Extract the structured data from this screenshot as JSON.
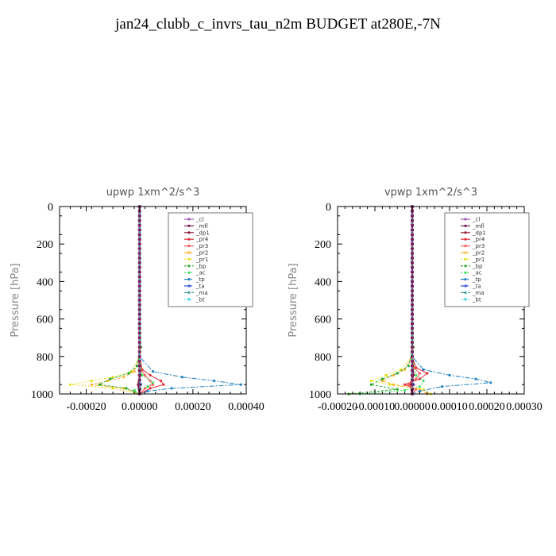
{
  "title": "jan24_clubb_c_invrs_tau_n2m  BUDGET at280E,-7N",
  "colors": {
    "_cl": "#9b59b6",
    "_mfl": "#7a1f5c",
    "_dp1": "#8b1a3a",
    "_pr4": "#e0303a",
    "_pr3": "#ff5a5a",
    "_pr2": "#ffb030",
    "_pr1": "#e8e020",
    "_bp": "#2aaa2a",
    "_ac": "#40e060",
    "_tp": "#2080c0",
    "_ta": "#3050d0",
    "_ma": "#40a0a0",
    "_bt": "#20d0e0"
  },
  "chart_data": [
    {
      "type": "line",
      "title": "upwp   1xm^2/s^3",
      "ylabel": "Pressure [hPa]",
      "xlabel": "",
      "xlim": [
        -0.0003,
        0.0004
      ],
      "ylim": [
        1000,
        0
      ],
      "xticks": [
        -0.0002,
        0.0,
        0.0002,
        0.0004
      ],
      "xticklabels": [
        "-0.00020",
        "0.00000",
        "0.00020",
        "0.00040"
      ],
      "yticks": [
        0,
        200,
        400,
        600,
        800,
        1000
      ],
      "yticklabels": [
        "0",
        "200",
        "400",
        "600",
        "800",
        "1000"
      ],
      "legend": [
        "_cl",
        "_mfl",
        "_dp1",
        "_pr4",
        "_pr3",
        "_pr2",
        "_pr1",
        "_bp",
        "_ac",
        "_tp",
        "_ta",
        "_ma",
        "_bt"
      ],
      "legend_position": "top-right",
      "series": [
        {
          "name": "_cl",
          "p": [
            0,
            200,
            400,
            600,
            800,
            900,
            950,
            1000
          ],
          "v": [
            0,
            0,
            0,
            0,
            0,
            0,
            0,
            0
          ]
        },
        {
          "name": "_mfl",
          "p": [
            0,
            200,
            400,
            600,
            800,
            900,
            950,
            1000
          ],
          "v": [
            0,
            0,
            0,
            0,
            0,
            0,
            0,
            0
          ]
        },
        {
          "name": "_dp1",
          "p": [
            0,
            200,
            400,
            600,
            800,
            900,
            950,
            1000
          ],
          "v": [
            0,
            0,
            0,
            0,
            0,
            2e-06,
            -5e-06,
            0
          ]
        },
        {
          "name": "_pr4",
          "p": [
            0,
            600,
            800,
            870,
            900,
            930,
            950,
            970,
            1000
          ],
          "v": [
            0,
            0,
            0,
            1e-05,
            4e-05,
            8e-05,
            9e-05,
            4e-05,
            0
          ]
        },
        {
          "name": "_pr3",
          "p": [
            0,
            600,
            800,
            870,
            900,
            930,
            950,
            970,
            1000
          ],
          "v": [
            0,
            0,
            0,
            5e-06,
            2e-05,
            4e-05,
            5e-05,
            2e-05,
            0
          ]
        },
        {
          "name": "_pr2",
          "p": [
            0,
            600,
            800,
            880,
            910,
            930,
            950,
            970,
            1000
          ],
          "v": [
            0,
            0,
            0,
            -2e-05,
            -6e-05,
            -0.00012,
            -0.00018,
            -6e-05,
            0
          ]
        },
        {
          "name": "_pr1",
          "p": [
            0,
            600,
            800,
            880,
            910,
            930,
            950,
            970,
            1000
          ],
          "v": [
            0,
            0,
            0,
            -3e-05,
            -0.0001,
            -0.00018,
            -0.00026,
            -0.0001,
            0
          ]
        },
        {
          "name": "_bp",
          "p": [
            0,
            600,
            750,
            850,
            890,
            920,
            950,
            970,
            1000
          ],
          "v": [
            0,
            0,
            5e-06,
            -1e-05,
            -4e-05,
            -0.00011,
            -0.00015,
            -5e-05,
            0
          ]
        },
        {
          "name": "_ac",
          "p": [
            0,
            600,
            800,
            900,
            940,
            960,
            980,
            1000
          ],
          "v": [
            0,
            0,
            0,
            1e-05,
            5e-05,
            3e-05,
            -2e-05,
            0
          ]
        },
        {
          "name": "_tp",
          "p": [
            0,
            600,
            800,
            880,
            910,
            930,
            950,
            970,
            985,
            1000
          ],
          "v": [
            0,
            0,
            0,
            5e-05,
            0.00016,
            0.00028,
            0.00038,
            0.00012,
            3e-05,
            0
          ]
        },
        {
          "name": "_ta",
          "p": [
            0,
            600,
            800,
            900,
            950,
            1000
          ],
          "v": [
            0,
            0,
            0,
            0,
            5e-06,
            0
          ]
        },
        {
          "name": "_ma",
          "p": [
            0,
            600,
            800,
            900,
            950,
            1000
          ],
          "v": [
            0,
            0,
            0,
            0,
            0,
            0
          ]
        },
        {
          "name": "_bt",
          "p": [
            0,
            600,
            800,
            900,
            950,
            1000
          ],
          "v": [
            0,
            0,
            0,
            0,
            0,
            0
          ]
        }
      ]
    },
    {
      "type": "line",
      "title": "vpwp   1xm^2/s^3",
      "ylabel": "Pressure [hPa]",
      "xlabel": "",
      "xlim": [
        -0.0002,
        0.0003
      ],
      "ylim": [
        1000,
        0
      ],
      "xticks": [
        -0.0002,
        -0.0001,
        0.0,
        0.0001,
        0.0002,
        0.0003
      ],
      "xticklabels": [
        "-0.00020",
        "-0.00010",
        "0.00000",
        "0.00010",
        "0.00020",
        "0.00030"
      ],
      "yticks": [
        0,
        200,
        400,
        600,
        800,
        1000
      ],
      "yticklabels": [
        "0",
        "200",
        "400",
        "600",
        "800",
        "1000"
      ],
      "legend": [
        "_cl",
        "_mfl",
        "_dp1",
        "_pr4",
        "_pr3",
        "_pr2",
        "_pr1",
        "_bp",
        "_ac",
        "_tp",
        "_ta",
        "_ma",
        "_bt"
      ],
      "legend_position": "top-right",
      "series": [
        {
          "name": "_cl",
          "p": [
            0,
            200,
            400,
            600,
            800,
            900,
            950,
            1000
          ],
          "v": [
            0,
            0,
            0,
            0,
            0,
            0,
            0,
            0
          ]
        },
        {
          "name": "_mfl",
          "p": [
            0,
            200,
            400,
            600,
            800,
            900,
            950,
            1000
          ],
          "v": [
            0,
            0,
            0,
            0,
            0,
            0,
            0,
            0
          ]
        },
        {
          "name": "_dp1",
          "p": [
            0,
            200,
            400,
            600,
            800,
            900,
            950,
            1000
          ],
          "v": [
            0,
            0,
            0,
            0,
            0,
            3e-06,
            -5e-06,
            0
          ]
        },
        {
          "name": "_pr4",
          "p": [
            0,
            600,
            800,
            860,
            890,
            920,
            950,
            975,
            1000
          ],
          "v": [
            0,
            0,
            0,
            1e-05,
            4e-05,
            2e-05,
            -2e-05,
            1e-05,
            0
          ]
        },
        {
          "name": "_pr3",
          "p": [
            0,
            600,
            800,
            860,
            890,
            920,
            950,
            975,
            1000
          ],
          "v": [
            0,
            0,
            0,
            5e-06,
            2e-05,
            1e-05,
            -1e-05,
            1e-05,
            0
          ]
        },
        {
          "name": "_pr2",
          "p": [
            0,
            600,
            800,
            870,
            900,
            930,
            950,
            975,
            1000
          ],
          "v": [
            0,
            0,
            0,
            -2e-05,
            -5e-05,
            -8e-05,
            -5e-05,
            2e-05,
            4e-05
          ]
        },
        {
          "name": "_pr1",
          "p": [
            0,
            600,
            800,
            870,
            900,
            930,
            950,
            975,
            1000
          ],
          "v": [
            0,
            0,
            0,
            -3e-05,
            -7e-05,
            -0.00011,
            -6e-05,
            3e-05,
            5e-05
          ]
        },
        {
          "name": "_bp",
          "p": [
            0,
            600,
            750,
            850,
            890,
            920,
            950,
            975,
            1000
          ],
          "v": [
            0,
            0,
            3e-06,
            -1e-05,
            -4e-05,
            -8e-05,
            -0.00011,
            -4e-05,
            -0.00017
          ]
        },
        {
          "name": "_ac",
          "p": [
            0,
            600,
            800,
            900,
            930,
            960,
            980,
            1000
          ],
          "v": [
            0,
            0,
            0,
            1e-05,
            3e-05,
            2e-05,
            -2e-05,
            -0.00014
          ]
        },
        {
          "name": "_tp",
          "p": [
            0,
            600,
            800,
            870,
            900,
            920,
            940,
            960,
            985,
            1000
          ],
          "v": [
            0,
            0,
            0,
            3e-05,
            0.0001,
            0.00017,
            0.00021,
            8e-05,
            2e-05,
            0
          ]
        },
        {
          "name": "_ta",
          "p": [
            0,
            600,
            800,
            900,
            950,
            1000
          ],
          "v": [
            0,
            0,
            0,
            0,
            4e-06,
            0
          ]
        },
        {
          "name": "_ma",
          "p": [
            0,
            600,
            800,
            900,
            950,
            1000
          ],
          "v": [
            0,
            0,
            0,
            0,
            0,
            0
          ]
        },
        {
          "name": "_bt",
          "p": [
            0,
            600,
            800,
            900,
            950,
            1000
          ],
          "v": [
            0,
            0,
            0,
            0,
            0,
            0
          ]
        }
      ]
    }
  ]
}
